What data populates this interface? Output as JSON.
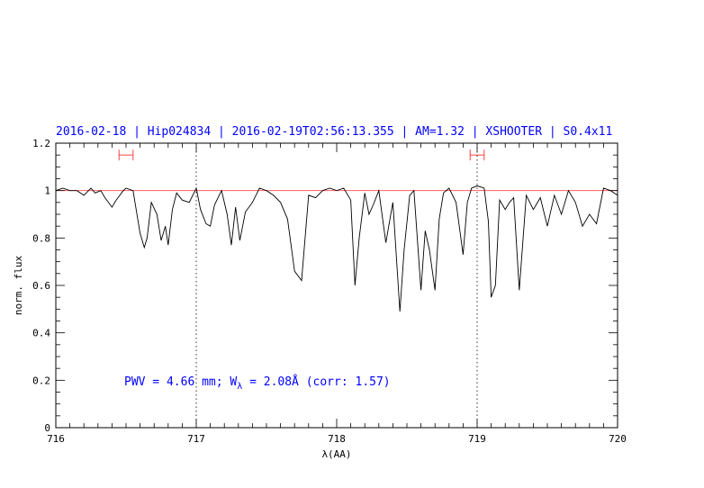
{
  "chart_data": {
    "type": "line",
    "title": "2016-02-18 | Hip024834 | 2016-02-19T02:56:13.355 | AM=1.32 | XSHOOTER | S0.4x11",
    "xlabel": "λ(AA)",
    "ylabel": "norm. flux",
    "xlim": [
      716,
      720
    ],
    "ylim": [
      0,
      1.2
    ],
    "x_ticks": [
      "716",
      "717",
      "718",
      "719",
      "720"
    ],
    "y_ticks": [
      "0",
      "0.2",
      "0.4",
      "0.6",
      "0.8",
      "1",
      "1.2"
    ],
    "grid": false,
    "reference_line": {
      "y": 1.0,
      "color": "#ff6060"
    },
    "vertical_markers": [
      717.0,
      719.0
    ],
    "range_markers": [
      {
        "from": 716.45,
        "to": 716.55,
        "y": 1.15
      },
      {
        "from": 718.95,
        "to": 719.05,
        "y": 1.15
      }
    ],
    "annotation": {
      "prefix": "PWV = 4.66 mm; W",
      "subscript": "λ",
      "suffix": " = 2.08Å (corr: 1.57)"
    },
    "series": [
      {
        "color": "#000000",
        "x": [
          716.0,
          716.05,
          716.1,
          716.15,
          716.2,
          716.25,
          716.28,
          716.32,
          716.35,
          716.4,
          716.43,
          716.48,
          716.5,
          716.55,
          716.6,
          716.63,
          716.65,
          716.68,
          716.72,
          716.75,
          716.78,
          716.8,
          716.83,
          716.86,
          716.9,
          716.95,
          717.0,
          717.03,
          717.07,
          717.1,
          717.13,
          717.18,
          717.22,
          717.25,
          717.28,
          717.31,
          717.35,
          717.4,
          717.45,
          717.5,
          717.55,
          717.6,
          717.65,
          717.7,
          717.75,
          717.8,
          717.85,
          717.9,
          717.95,
          718.0,
          718.05,
          718.1,
          718.13,
          718.16,
          718.2,
          718.23,
          718.26,
          718.3,
          718.35,
          718.4,
          718.45,
          718.48,
          718.52,
          718.55,
          718.6,
          718.63,
          718.66,
          718.7,
          718.73,
          718.76,
          718.8,
          718.85,
          718.9,
          718.93,
          718.96,
          719.0,
          719.05,
          719.08,
          719.1,
          719.13,
          719.16,
          719.2,
          719.23,
          719.26,
          719.3,
          719.35,
          719.4,
          719.45,
          719.5,
          719.55,
          719.6,
          719.65,
          719.7,
          719.75,
          719.8,
          719.85,
          719.9,
          719.95,
          720.0
        ],
        "y": [
          1.0,
          1.01,
          1.0,
          1.0,
          0.98,
          1.01,
          0.99,
          1.0,
          0.97,
          0.93,
          0.96,
          1.0,
          1.01,
          1.0,
          0.82,
          0.76,
          0.8,
          0.95,
          0.9,
          0.79,
          0.85,
          0.77,
          0.92,
          0.99,
          0.96,
          0.95,
          1.01,
          0.92,
          0.86,
          0.85,
          0.94,
          1.0,
          0.9,
          0.77,
          0.93,
          0.79,
          0.91,
          0.95,
          1.01,
          1.0,
          0.98,
          0.95,
          0.88,
          0.66,
          0.62,
          0.98,
          0.97,
          1.0,
          1.01,
          1.0,
          1.01,
          0.96,
          0.6,
          0.8,
          0.99,
          0.9,
          0.94,
          1.0,
          0.78,
          0.95,
          0.49,
          0.75,
          0.98,
          1.0,
          0.58,
          0.83,
          0.75,
          0.58,
          0.88,
          0.99,
          1.01,
          0.95,
          0.73,
          0.95,
          1.01,
          1.02,
          1.01,
          0.87,
          0.55,
          0.6,
          0.96,
          0.92,
          0.95,
          0.97,
          0.58,
          0.98,
          0.92,
          0.97,
          0.85,
          0.98,
          0.9,
          1.0,
          0.95,
          0.85,
          0.9,
          0.86,
          1.01,
          1.0,
          0.98
        ]
      }
    ]
  }
}
